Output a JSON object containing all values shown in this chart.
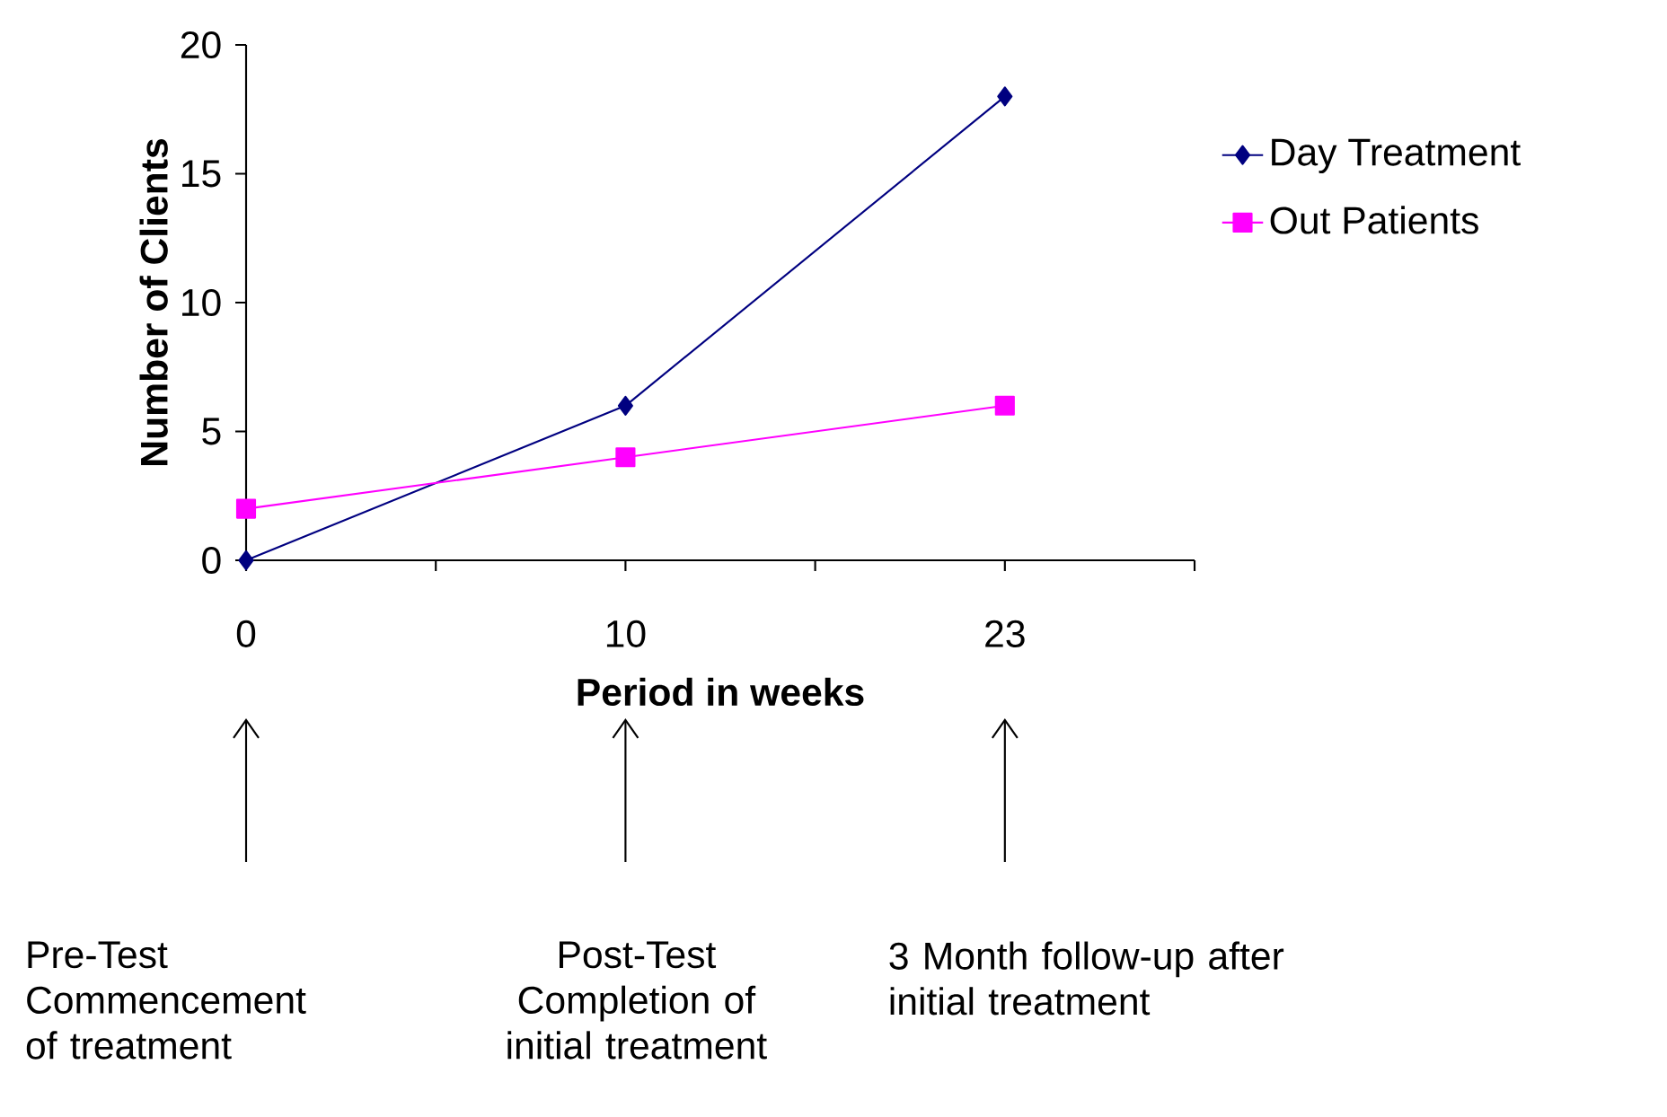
{
  "chart_data": {
    "type": "line",
    "xlabel": "Period in weeks",
    "ylabel": "Number of Clients",
    "categories": [
      "0",
      "10",
      "23"
    ],
    "ylim": [
      0,
      20
    ],
    "yticks": [
      0,
      5,
      10,
      15,
      20
    ],
    "grid": false,
    "legend": "right",
    "series": [
      {
        "name": "Day Treatment",
        "color": "#000080",
        "marker": "diamond",
        "values": [
          0,
          6,
          18
        ]
      },
      {
        "name": "Out Patients",
        "color": "#ff00ff",
        "marker": "square",
        "values": [
          2,
          4,
          6
        ]
      }
    ],
    "annotations": [
      "Pre-Test Commencement of treatment",
      "Post-Test Completion of initial treatment",
      "3 Month follow-up after initial treatment"
    ]
  }
}
